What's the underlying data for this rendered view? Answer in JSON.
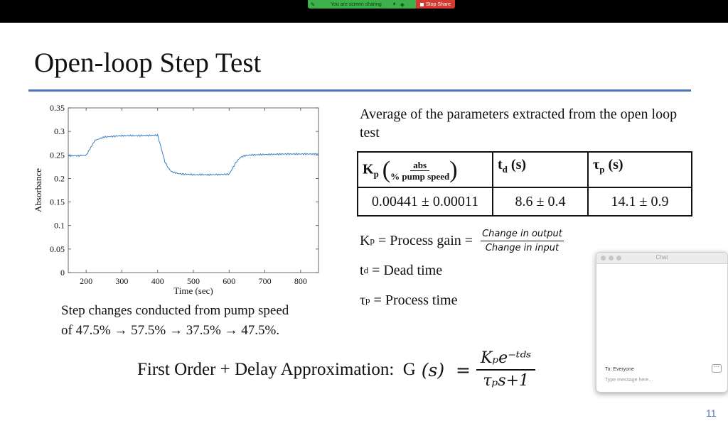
{
  "screenshare": {
    "status_text": "You are screen sharing",
    "stop_label": "Stop Share",
    "pill_color": "#3db24a",
    "stop_color": "#d33a32"
  },
  "slide": {
    "title": "Open-loop Step Test",
    "caption_line1": "Step changes conducted from pump speed",
    "caption_line2": "of 47.5% → 57.5% → 37.5% → 47.5%.",
    "avg_text": "Average of the parameters extracted from the open loop test",
    "accent_color": "#4f74bd",
    "page_number": "11"
  },
  "table": {
    "kp_head": "K",
    "kp_sub": "p",
    "kp_frac_num": "abs",
    "kp_frac_den": "% pump speed",
    "td_head": "t",
    "td_sub": "d",
    "td_unit": " (s)",
    "tau_head": "τ",
    "tau_sub": "p",
    "tau_unit": " (s)",
    "kp_value": "0.00441 ± 0.00011",
    "td_value": "8.6 ± 0.4",
    "tau_value": "14.1 ± 0.9"
  },
  "definitions": {
    "kp_sym": "K",
    "kp_sub": "p",
    "kp_text": " = Process gain = ",
    "kp_num": "Change in output",
    "kp_den": "Change in input",
    "td_sym": "t",
    "td_sub": "d",
    "td_text": " = Dead time",
    "tau_sym": "τ",
    "tau_sub": "p",
    "tau_text": " = Process time"
  },
  "formula": {
    "label": "First Order + Delay Approximation:  G",
    "arg": " (𝑠)  =",
    "num": "Kₚe⁻ᵗᵈˢ",
    "den": "τₚs+1"
  },
  "chat": {
    "title": "Chat",
    "to": "To: Everyone",
    "more": "···",
    "placeholder": "Type message here..."
  },
  "chart_data": {
    "type": "line",
    "xlabel": "Time (sec)",
    "ylabel": "Absorbance",
    "xlim": [
      150,
      850
    ],
    "ylim": [
      0,
      0.35
    ],
    "x_ticks": [
      "200",
      "300",
      "400",
      "500",
      "600",
      "700",
      "800"
    ],
    "y_ticks": [
      "0",
      "0.05",
      "0.1",
      "0.15",
      "0.2",
      "0.25",
      "0.3",
      "0.35"
    ],
    "line_color": "#3a7fc1",
    "series": [
      {
        "x": [
          150,
          200,
          210,
          225,
          250,
          300,
          350,
          400,
          410,
          420,
          430,
          440,
          460,
          500,
          550,
          600,
          610,
          620,
          630,
          640,
          660,
          700,
          750,
          800,
          850
        ],
        "y": [
          0.248,
          0.249,
          0.262,
          0.281,
          0.288,
          0.291,
          0.291,
          0.292,
          0.265,
          0.236,
          0.222,
          0.214,
          0.21,
          0.208,
          0.208,
          0.209,
          0.222,
          0.235,
          0.244,
          0.248,
          0.25,
          0.251,
          0.252,
          0.252,
          0.252
        ]
      }
    ]
  }
}
